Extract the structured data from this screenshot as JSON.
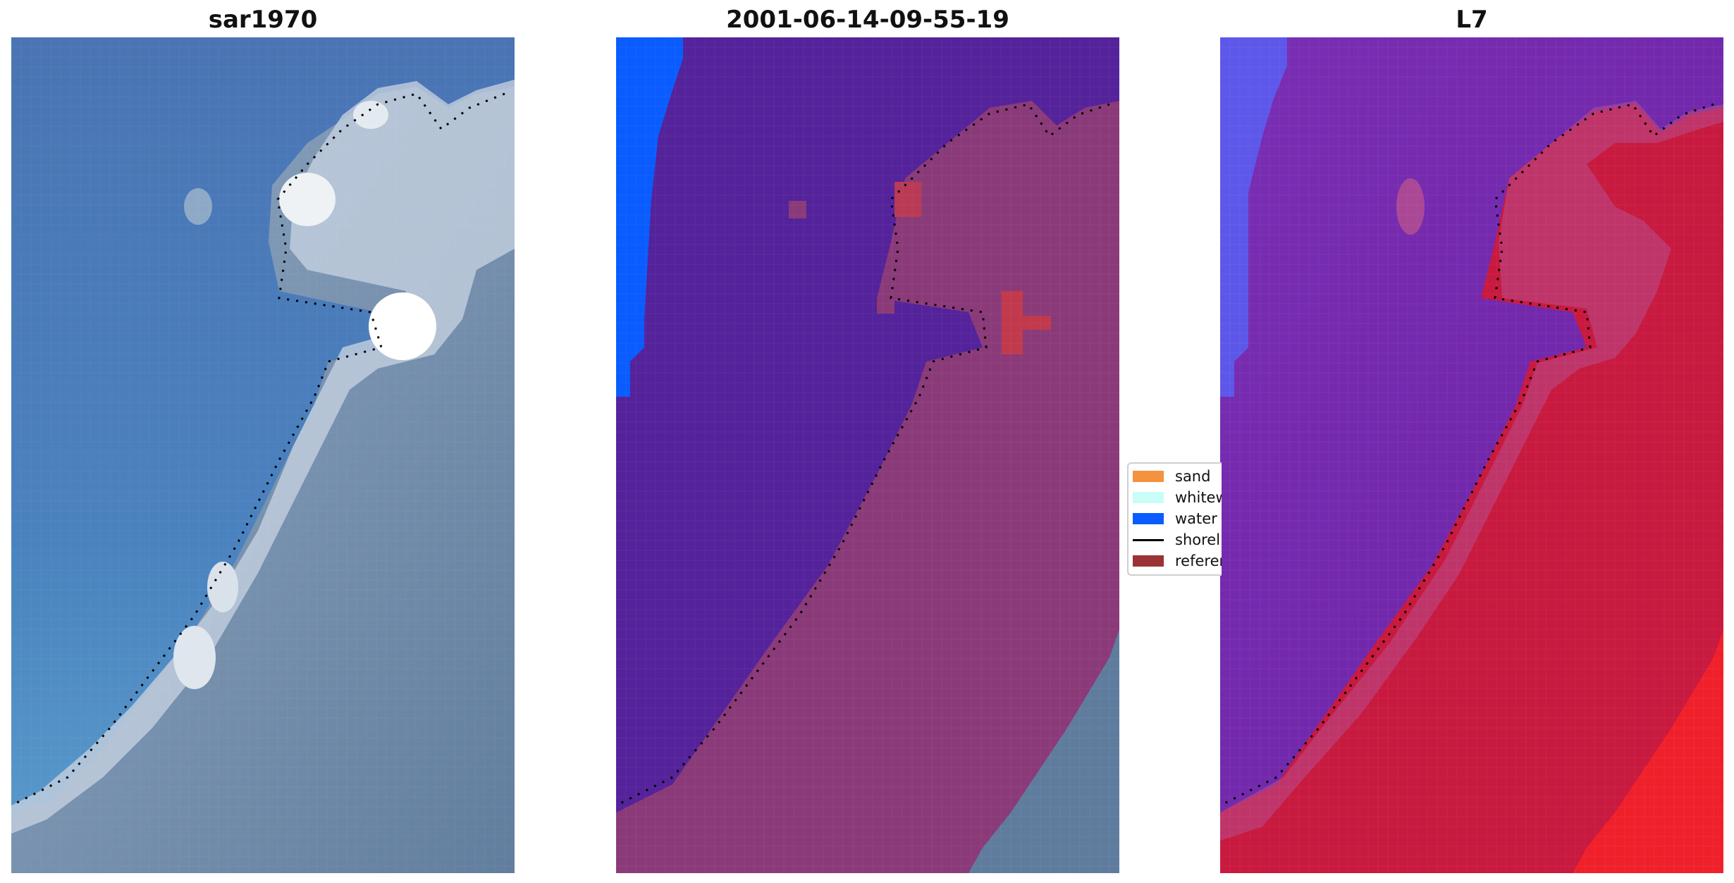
{
  "panels": [
    {
      "title": "sar1970"
    },
    {
      "title": "2001-06-14-09-55-19"
    },
    {
      "title": "L7"
    }
  ],
  "legend": {
    "items": [
      {
        "label": "sand",
        "color": "#f5923e",
        "kind": "patch"
      },
      {
        "label": "whitewater",
        "color": "#c8fdf8",
        "kind": "patch"
      },
      {
        "label": "water",
        "color": "#0a5cff",
        "kind": "patch"
      },
      {
        "label": "shoreline",
        "color": "#000000",
        "kind": "line"
      },
      {
        "label": "reference shoreline",
        "color": "#9b3236",
        "kind": "patch"
      }
    ]
  },
  "colors": {
    "sea_rgb": "#4a78b4",
    "land_rgb": "#6e8aa8",
    "whitewater_rgb": "#e6ecf2",
    "class_sea": "#54229a",
    "class_land": "#8a3a78",
    "class_water": "#0a5cff",
    "index_sea": "#7b2fb0",
    "index_land": "#c8193f",
    "index_water": "#5a5cf0"
  }
}
